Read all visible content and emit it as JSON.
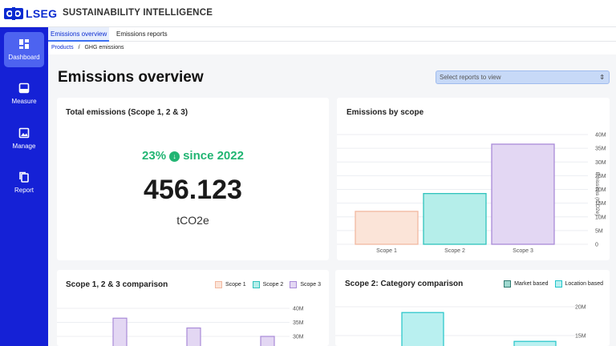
{
  "brand": "LSEG",
  "app_title": "SUSTAINABILITY INTELLIGENCE",
  "sidebar": {
    "items": [
      {
        "label": "Dashboard",
        "icon": "dashboard-icon",
        "active": true
      },
      {
        "label": "Measure",
        "icon": "measure-icon"
      },
      {
        "label": "Manage",
        "icon": "image-icon"
      },
      {
        "label": "Report",
        "icon": "copy-icon"
      }
    ]
  },
  "tabs": [
    {
      "label": "Emissions overview",
      "active": true
    },
    {
      "label": "Emissions reports"
    }
  ],
  "breadcrumb": {
    "root": "Products",
    "separator": "/",
    "current": "GHG emissions"
  },
  "page_title": "Emissions overview",
  "report_select": {
    "placeholder": "Select reports to view"
  },
  "total_card": {
    "title": "Total emissions (Scope 1, 2 & 3)",
    "change_pct": "23%",
    "since": "since 2022",
    "value": "456.123",
    "unit": "tCO2e"
  },
  "colors": {
    "accent": "#1521d6",
    "positive": "#22b573",
    "scope1_fill": "#fbe4d8",
    "scope1_stroke": "#f2b8a0",
    "scope2_fill": "#b5eeea",
    "scope2_stroke": "#2fc2bc",
    "scope3_fill": "#e3d7f3",
    "scope3_stroke": "#a98ad8",
    "market_fill": "#9fd8cf",
    "market_stroke": "#2f7a70",
    "location_fill": "#b9f0f0",
    "location_stroke": "#22c4c9"
  },
  "chart_data": [
    {
      "type": "bar",
      "title": "Emissions by scope",
      "categories": [
        "Scope 1",
        "Scope 2",
        "Scope 3"
      ],
      "values": [
        12,
        18.5,
        36.5
      ],
      "ylabel": "Emissions (tCO2e)",
      "yticks": [
        "40M",
        "35M",
        "30M",
        "25M",
        "20M",
        "15M",
        "10M",
        "5M",
        "0"
      ],
      "ylim": [
        0,
        40
      ],
      "grid": true
    },
    {
      "type": "bar",
      "title": "Scope 1, 2 & 3 comparison",
      "legend": [
        "Scope 1",
        "Scope 2",
        "Scope 3"
      ],
      "series": [
        {
          "name": "Scope 3",
          "values": [
            36.5,
            33,
            30
          ]
        }
      ],
      "yticks": [
        "40M",
        "35M",
        "30M"
      ],
      "legend_position": "top-right",
      "grid": true
    },
    {
      "type": "bar",
      "title": "Scope 2: Category comparison",
      "legend": [
        "Market based",
        "Location based"
      ],
      "series": [
        {
          "name": "Market based",
          "values": [
            19
          ]
        },
        {
          "name": "Location based",
          "values": [
            14
          ]
        }
      ],
      "yticks": [
        "20M",
        "15M"
      ],
      "legend_position": "top-right",
      "grid": true
    }
  ]
}
